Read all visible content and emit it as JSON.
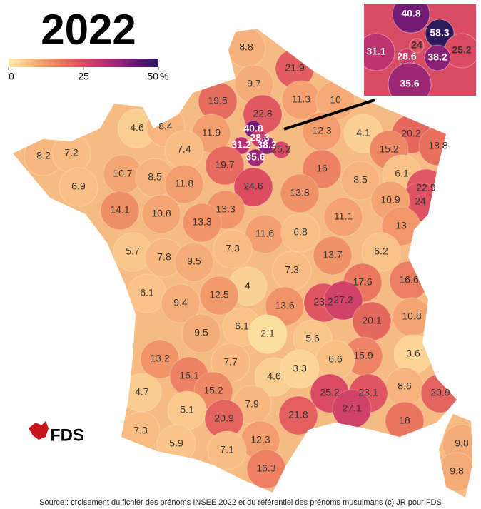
{
  "title": "2022",
  "legend": {
    "range": [
      0,
      50
    ],
    "ticks": [
      0,
      25,
      50
    ],
    "unit": "%",
    "colors": [
      "#fdecac",
      "#f9c286",
      "#f29a6a",
      "#e8705c",
      "#db4b62",
      "#bb3270",
      "#8f2377",
      "#5c1673",
      "#2d1a5c"
    ]
  },
  "regions": {
    "values": [
      8.8,
      21.9,
      9.7,
      11.3,
      10,
      19.5,
      22.8,
      4.6,
      8.4,
      11.9,
      40.8,
      12.3,
      4.1,
      20.2,
      8.2,
      7.2,
      7.4,
      31.2,
      28.3,
      38.2,
      25.2,
      15.2,
      18.8,
      6.9,
      10.7,
      8.5,
      11.8,
      19.7,
      35.6,
      16,
      8.5,
      6.1,
      22.9,
      24,
      24.6,
      13.8,
      10.9,
      14.1,
      10.8,
      13.3,
      13.3,
      11.1,
      13,
      11.6,
      6.8,
      5.7,
      7.8,
      9.5,
      7.3,
      13.7,
      6.2,
      7.3,
      16.6,
      17.6,
      4,
      6.1,
      9.4,
      12.5,
      13.6,
      23.2,
      27.2,
      20.1,
      10.8,
      9.5,
      6.1,
      2.1,
      5.6,
      3.6,
      13.2,
      15.9,
      6.6,
      7.7,
      16.1,
      4.6,
      3.3,
      4.7,
      15.2,
      8.6,
      20.9,
      25.2,
      23.1,
      27.1,
      5.1,
      7.9,
      21.8,
      18,
      20.9,
      7.3,
      12.3,
      9.8,
      5.9,
      7.1,
      16.3,
      9.8
    ]
  },
  "inset": {
    "values": [
      40.8,
      58.3,
      31.1,
      24,
      28.6,
      25.2,
      38.2,
      35.6
    ]
  },
  "logo": "FDS",
  "source": "Source : croisement du fichier des prénoms INSEE 2022 et du référentiel des prénoms musulmans (c) JR pour FDS"
}
